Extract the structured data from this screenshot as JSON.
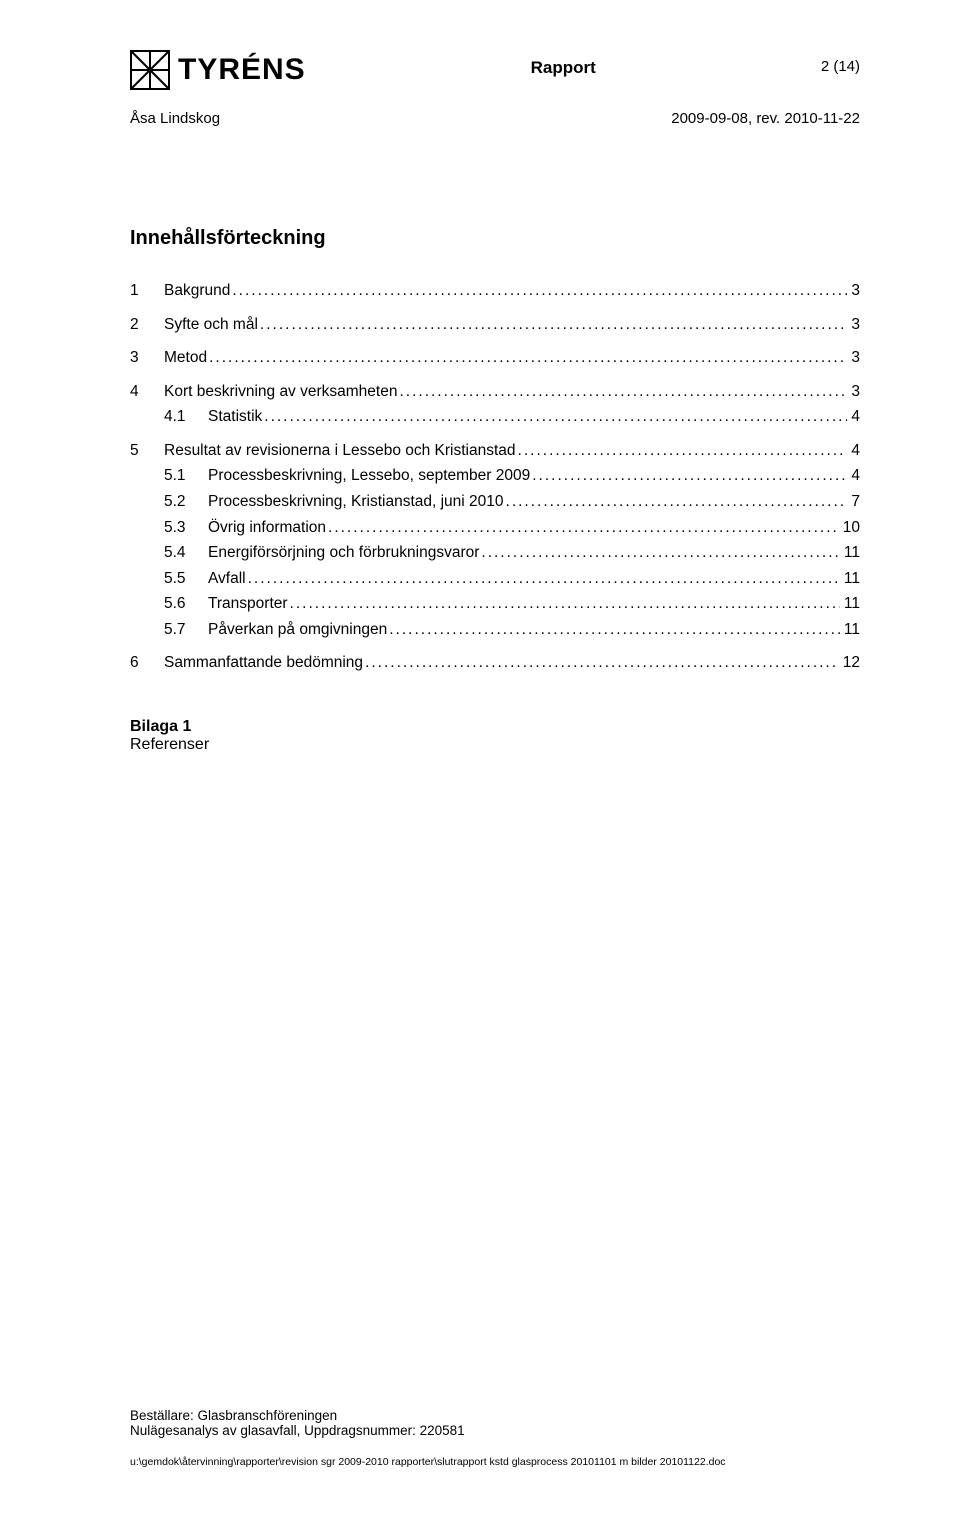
{
  "header": {
    "logo_text": "TYRÉNS",
    "doc_title": "Rapport",
    "page_num": "2 (14)"
  },
  "author_row": {
    "author": "Åsa Lindskog",
    "date": "2009-09-08, rev. 2010-11-22"
  },
  "toc": {
    "title": "Innehållsförteckning",
    "entries": [
      {
        "num": "1",
        "label": "Bakgrund",
        "page": "3",
        "level": 0
      },
      {
        "num": "2",
        "label": "Syfte och mål",
        "page": "3",
        "level": 0
      },
      {
        "num": "3",
        "label": "Metod",
        "page": "3",
        "level": 0
      },
      {
        "num": "4",
        "label": "Kort beskrivning av verksamheten",
        "page": "3",
        "level": 0
      },
      {
        "num": "4.1",
        "label": "Statistik",
        "page": "4",
        "level": 1
      },
      {
        "num": "5",
        "label": "Resultat av revisionerna i Lessebo och Kristianstad",
        "page": "4",
        "level": 0
      },
      {
        "num": "5.1",
        "label": "Processbeskrivning, Lessebo, september 2009",
        "page": "4",
        "level": 1
      },
      {
        "num": "5.2",
        "label": "Processbeskrivning, Kristianstad, juni 2010",
        "page": "7",
        "level": 1
      },
      {
        "num": "5.3",
        "label": "Övrig information",
        "page": "10",
        "level": 1
      },
      {
        "num": "5.4",
        "label": "Energiförsörjning och förbrukningsvaror",
        "page": "11",
        "level": 1
      },
      {
        "num": "5.5",
        "label": "Avfall",
        "page": "11",
        "level": 1
      },
      {
        "num": "5.6",
        "label": "Transporter",
        "page": "11",
        "level": 1
      },
      {
        "num": "5.7",
        "label": "Påverkan på omgivningen",
        "page": "11",
        "level": 1
      },
      {
        "num": "6",
        "label": "Sammanfattande bedömning",
        "page": "12",
        "level": 0
      }
    ]
  },
  "bilaga": {
    "title": "Bilaga 1",
    "line": "Referenser"
  },
  "footer": {
    "line1": "Beställare: Glasbranschföreningen",
    "line2": "Nulägesanalys av glasavfall, Uppdragsnummer: 220581",
    "path": "u:\\gemdok\\återvinning\\rapporter\\revision sgr 2009-2010 rapporter\\slutrapport kstd glasprocess 20101101 m bilder 20101122.doc"
  }
}
